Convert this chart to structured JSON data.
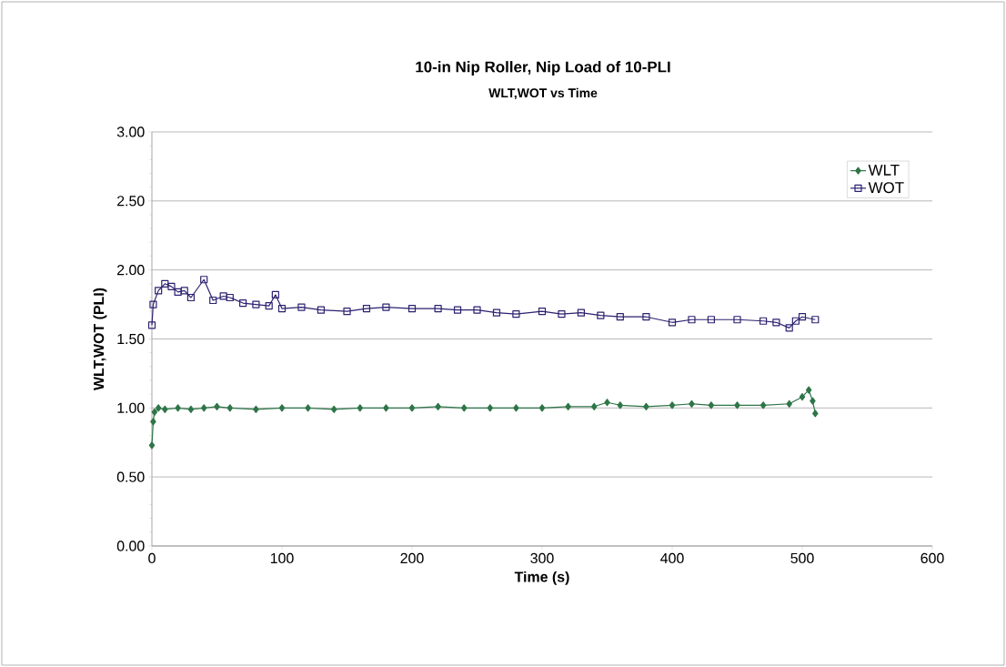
{
  "chart_data": {
    "type": "line",
    "title": "10-in Nip Roller, Nip Load of 10-PLI",
    "subtitle": "WLT,WOT vs Time",
    "xlabel": "Time (s)",
    "ylabel": "WLT,WOT (PLI)",
    "xlim": [
      0,
      600
    ],
    "xticks": [
      0,
      100,
      200,
      300,
      400,
      500,
      600
    ],
    "ylim": [
      0,
      3
    ],
    "yticks": [
      {
        "value": 0,
        "label": "0.00"
      },
      {
        "value": 0.5,
        "label": "0.50"
      },
      {
        "value": 1,
        "label": "1.00"
      },
      {
        "value": 1.5,
        "label": "1.50"
      },
      {
        "value": 2,
        "label": "2.00"
      },
      {
        "value": 2.5,
        "label": "2.50"
      },
      {
        "value": 3,
        "label": "3.00"
      }
    ],
    "grid": "y",
    "legend": "top right",
    "series": [
      {
        "name": "WLT",
        "color": "#2e7548",
        "marker": "diamond",
        "x": [
          0,
          1,
          2,
          5,
          10,
          20,
          30,
          40,
          50,
          60,
          80,
          100,
          120,
          140,
          160,
          180,
          200,
          220,
          240,
          260,
          280,
          300,
          320,
          340,
          350,
          360,
          380,
          400,
          415,
          430,
          450,
          470,
          490,
          500,
          505,
          508,
          510
        ],
        "values": [
          0.73,
          0.9,
          0.97,
          1.0,
          0.99,
          1.0,
          0.99,
          1.0,
          1.01,
          1.0,
          0.99,
          1.0,
          1.0,
          0.99,
          1.0,
          1.0,
          1.0,
          1.01,
          1.0,
          1.0,
          1.0,
          1.0,
          1.01,
          1.01,
          1.04,
          1.02,
          1.01,
          1.02,
          1.03,
          1.02,
          1.02,
          1.02,
          1.03,
          1.08,
          1.13,
          1.05,
          0.96
        ]
      },
      {
        "name": "WOT",
        "color": "#2c2270",
        "marker": "square",
        "x": [
          0,
          1,
          5,
          10,
          15,
          20,
          25,
          30,
          40,
          47,
          55,
          60,
          70,
          80,
          90,
          95,
          100,
          115,
          130,
          150,
          165,
          180,
          200,
          220,
          235,
          250,
          265,
          280,
          300,
          315,
          330,
          345,
          360,
          380,
          400,
          415,
          430,
          450,
          470,
          480,
          490,
          495,
          500,
          510
        ],
        "values": [
          1.6,
          1.75,
          1.85,
          1.9,
          1.88,
          1.84,
          1.85,
          1.8,
          1.93,
          1.78,
          1.81,
          1.8,
          1.76,
          1.75,
          1.74,
          1.82,
          1.72,
          1.73,
          1.71,
          1.7,
          1.72,
          1.73,
          1.72,
          1.72,
          1.71,
          1.71,
          1.69,
          1.68,
          1.7,
          1.68,
          1.69,
          1.67,
          1.66,
          1.66,
          1.62,
          1.64,
          1.64,
          1.64,
          1.63,
          1.62,
          1.58,
          1.63,
          1.66,
          1.64
        ]
      }
    ]
  }
}
